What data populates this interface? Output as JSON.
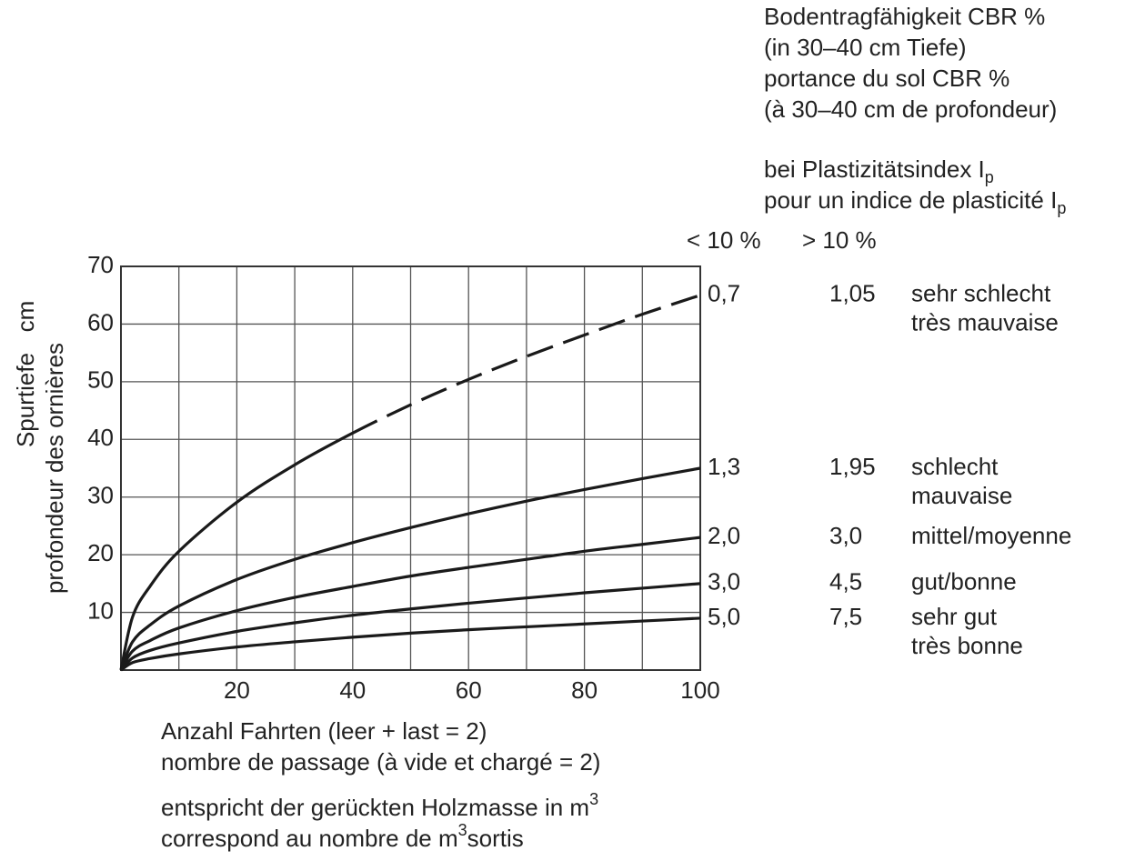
{
  "chart_data": {
    "type": "line",
    "legend_title": [
      "Bodentragfähigkeit CBR %",
      "(in 30–40 cm Tiefe)",
      "portance du sol CBR %",
      "(à 30–40 cm de profondeur)"
    ],
    "ip_title": [
      {
        "text": "bei Plastizitätsindex I",
        "sub": "p"
      },
      {
        "text": "pour un indice de plasticité I",
        "sub": "p"
      }
    ],
    "column_headers": [
      "< 10 %",
      "> 10 %"
    ],
    "ylabel": [
      "Spurtiefe",
      "profondeur des ornières"
    ],
    "yunit": "cm",
    "xlabel": [
      "Anzahl Fahrten (leer + last = 2)",
      "nombre de passage (à vide et chargé = 2)"
    ],
    "note": [
      {
        "text": "entspricht der gerückten Holzmasse in m",
        "sup": "3"
      },
      {
        "text": "correspond au nombre de m",
        "sup": "3",
        "after": "sortis"
      }
    ],
    "x": [
      0,
      2,
      5,
      10,
      20,
      30,
      40,
      50,
      60,
      70,
      80,
      90,
      100
    ],
    "xlim": [
      0,
      100
    ],
    "xticks": [
      20,
      40,
      60,
      80,
      100
    ],
    "minor_xticks": [
      10,
      30,
      50,
      70,
      90
    ],
    "ylim": [
      0,
      70
    ],
    "yticks": [
      10,
      20,
      30,
      40,
      50,
      60,
      70
    ],
    "grid": true,
    "color": "#1a1a1a",
    "series": [
      {
        "name": "0,7",
        "ip_value": "1,05",
        "description": [
          "sehr schlecht",
          "très mauvaise"
        ],
        "dashed_from_x": 40,
        "values": [
          0,
          9.2,
          14.5,
          20.6,
          29.1,
          35.6,
          41.1,
          46.0,
          50.4,
          54.4,
          58.1,
          61.7,
          65
        ]
      },
      {
        "name": "1,3",
        "ip_value": "1,95",
        "description": [
          "schlecht",
          "mauvaise"
        ],
        "values": [
          0,
          4.9,
          7.8,
          11.1,
          15.7,
          19.2,
          22.1,
          24.7,
          27.1,
          29.3,
          31.3,
          33.2,
          35
        ]
      },
      {
        "name": "2,0",
        "ip_value": "3,0",
        "description": [
          "mittel/moyenne"
        ],
        "values": [
          0,
          3.3,
          5.1,
          7.3,
          10.3,
          12.6,
          14.5,
          16.3,
          17.8,
          19.2,
          20.6,
          21.8,
          23
        ]
      },
      {
        "name": "3,0",
        "ip_value": "4,5",
        "description": [
          "gut/bonne"
        ],
        "values": [
          0,
          2.1,
          3.4,
          4.7,
          6.7,
          8.2,
          9.5,
          10.6,
          11.6,
          12.5,
          13.4,
          14.2,
          15
        ]
      },
      {
        "name": "5,0",
        "ip_value": "7,5",
        "description": [
          "sehr gut",
          "très bonne"
        ],
        "values": [
          0,
          1.3,
          2.0,
          2.8,
          4.0,
          4.9,
          5.7,
          6.4,
          7.0,
          7.5,
          8.0,
          8.5,
          9
        ]
      }
    ]
  }
}
